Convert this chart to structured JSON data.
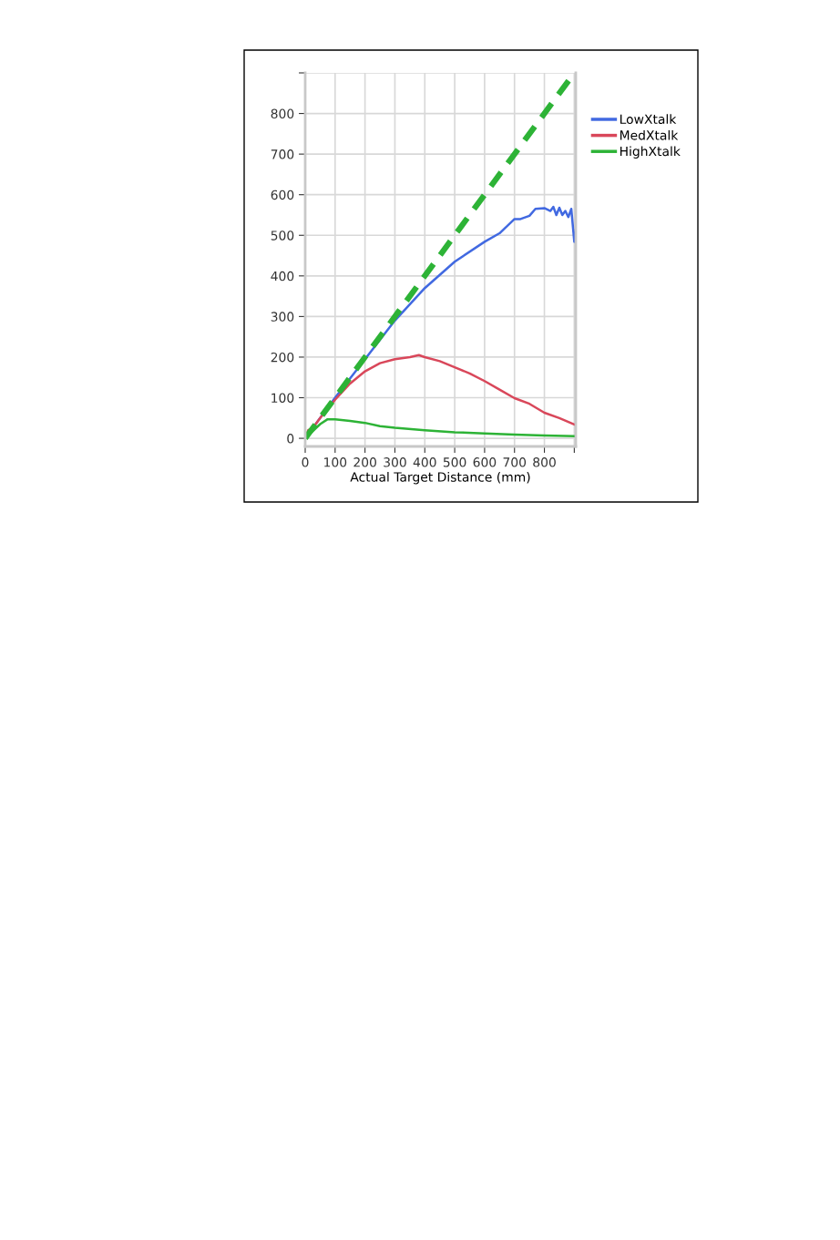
{
  "chart_data": {
    "type": "line",
    "xlabel": "Actual Target Distance (mm)",
    "xlim": [
      0,
      905
    ],
    "ylim": [
      -20,
      900
    ],
    "xticks": [
      0,
      100,
      200,
      300,
      400,
      500,
      600,
      700,
      800,
      {
        "value": 900,
        "label": null
      }
    ],
    "yticks": [
      0,
      100,
      200,
      300,
      400,
      500,
      600,
      700,
      800,
      {
        "value": 900,
        "label": null
      }
    ],
    "grid": true,
    "legend": "right",
    "marker": "none",
    "series": [
      {
        "name": "LowXtalk",
        "color": "#4169e1",
        "x": [
          0,
          50,
          100,
          200,
          300,
          400,
          500,
          600,
          650,
          700,
          720,
          750,
          770,
          800,
          820,
          830,
          840,
          850,
          860,
          870,
          880,
          890,
          900,
          905
        ],
        "values": [
          0,
          50,
          100,
          195,
          290,
          370,
          435,
          484,
          505,
          540,
          540,
          548,
          565,
          567,
          560,
          570,
          550,
          568,
          550,
          560,
          545,
          565,
          484,
          513
        ]
      },
      {
        "name": "MedXtalk",
        "color": "#d9475a",
        "x": [
          0,
          10,
          25,
          50,
          100,
          150,
          200,
          250,
          300,
          350,
          380,
          400,
          450,
          500,
          550,
          600,
          650,
          700,
          750,
          800,
          850,
          900
        ],
        "values": [
          0,
          20,
          25,
          50,
          95,
          135,
          165,
          185,
          195,
          200,
          205,
          200,
          190,
          175,
          160,
          141,
          120,
          99,
          85,
          63,
          50,
          34
        ]
      },
      {
        "name": "HighXtalk",
        "color": "#2db336",
        "x": [
          0,
          50,
          75,
          100,
          150,
          200,
          250,
          300,
          400,
          500,
          600,
          700,
          800,
          905
        ],
        "values": [
          0,
          35,
          47,
          47,
          43,
          38,
          30,
          26,
          20,
          15,
          12,
          9,
          7,
          5
        ]
      },
      {
        "color": "#2db336",
        "line_style": "dashed",
        "x": [
          0,
          900
        ],
        "values": [
          0,
          900
        ]
      }
    ]
  }
}
